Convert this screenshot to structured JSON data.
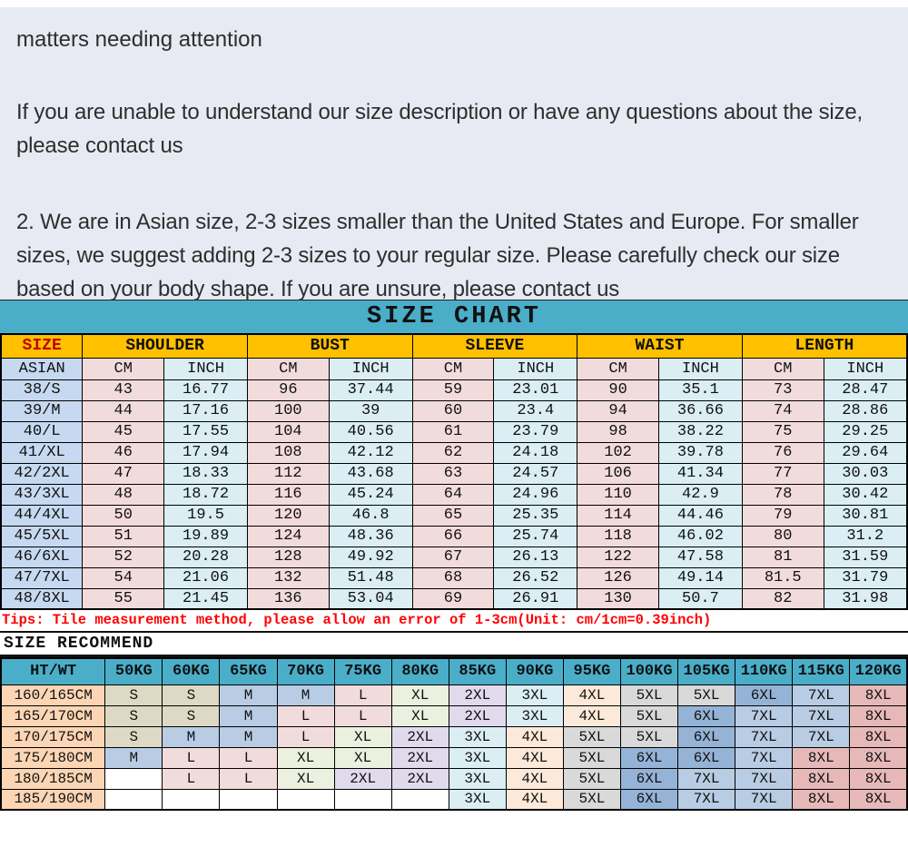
{
  "intro": {
    "title": "matters needing attention",
    "para1": "If you are unable to understand our size description or have any questions about the size, please contact us",
    "para2": "2. We are in Asian size, 2-3 sizes smaller than the United States and Europe. For smaller sizes, we suggest adding 2-3 sizes to your regular size. Please carefully check our size based on your body shape. If you are unsure, please contact us"
  },
  "size_chart": {
    "title": "SIZE CHART",
    "col_groups": [
      "SIZE",
      "SHOULDER",
      "BUST",
      "SLEEVE",
      "WAIST",
      "LENGTH"
    ],
    "sub_headers": [
      "ASIAN",
      "CM",
      "INCH",
      "CM",
      "INCH",
      "CM",
      "INCH",
      "CM",
      "INCH",
      "CM",
      "INCH"
    ],
    "rows": [
      [
        "38/S",
        "43",
        "16.77",
        "96",
        "37.44",
        "59",
        "23.01",
        "90",
        "35.1",
        "73",
        "28.47"
      ],
      [
        "39/M",
        "44",
        "17.16",
        "100",
        "39",
        "60",
        "23.4",
        "94",
        "36.66",
        "74",
        "28.86"
      ],
      [
        "40/L",
        "45",
        "17.55",
        "104",
        "40.56",
        "61",
        "23.79",
        "98",
        "38.22",
        "75",
        "29.25"
      ],
      [
        "41/XL",
        "46",
        "17.94",
        "108",
        "42.12",
        "62",
        "24.18",
        "102",
        "39.78",
        "76",
        "29.64"
      ],
      [
        "42/2XL",
        "47",
        "18.33",
        "112",
        "43.68",
        "63",
        "24.57",
        "106",
        "41.34",
        "77",
        "30.03"
      ],
      [
        "43/3XL",
        "48",
        "18.72",
        "116",
        "45.24",
        "64",
        "24.96",
        "110",
        "42.9",
        "78",
        "30.42"
      ],
      [
        "44/4XL",
        "50",
        "19.5",
        "120",
        "46.8",
        "65",
        "25.35",
        "114",
        "44.46",
        "79",
        "30.81"
      ],
      [
        "45/5XL",
        "51",
        "19.89",
        "124",
        "48.36",
        "66",
        "25.74",
        "118",
        "46.02",
        "80",
        "31.2"
      ],
      [
        "46/6XL",
        "52",
        "20.28",
        "128",
        "49.92",
        "67",
        "26.13",
        "122",
        "47.58",
        "81",
        "31.59"
      ],
      [
        "47/7XL",
        "54",
        "21.06",
        "132",
        "51.48",
        "68",
        "26.52",
        "126",
        "49.14",
        "81.5",
        "31.79"
      ],
      [
        "48/8XL",
        "55",
        "21.45",
        "136",
        "53.04",
        "69",
        "26.91",
        "130",
        "50.7",
        "82",
        "31.98"
      ]
    ]
  },
  "tips": "Tips: Tile measurement method, please allow an error of 1-3cm(Unit: cm/1cm=0.39inch)",
  "recommend": {
    "title": "SIZE RECOMMEND",
    "headers": [
      "HT/WT",
      "50KG",
      "60KG",
      "65KG",
      "70KG",
      "75KG",
      "80KG",
      "85KG",
      "90KG",
      "95KG",
      "100KG",
      "105KG",
      "110KG",
      "115KG",
      "120KG"
    ],
    "rows": [
      [
        "160/165CM",
        "S",
        "S",
        "M",
        "M",
        "L",
        "XL",
        "2XL",
        "3XL",
        "4XL",
        "5XL",
        "5XL",
        "6XL",
        "7XL",
        "8XL"
      ],
      [
        "165/170CM",
        "S",
        "S",
        "M",
        "L",
        "L",
        "XL",
        "2XL",
        "3XL",
        "4XL",
        "5XL",
        "6XL",
        "7XL",
        "7XL",
        "8XL"
      ],
      [
        "170/175CM",
        "S",
        "M",
        "M",
        "L",
        "XL",
        "2XL",
        "3XL",
        "4XL",
        "5XL",
        "5XL",
        "6XL",
        "7XL",
        "7XL",
        "8XL"
      ],
      [
        "175/180CM",
        "M",
        "L",
        "L",
        "XL",
        "XL",
        "2XL",
        "3XL",
        "4XL",
        "5XL",
        "6XL",
        "6XL",
        "7XL",
        "8XL",
        "8XL"
      ],
      [
        "180/185CM",
        "",
        "L",
        "L",
        "XL",
        "2XL",
        "2XL",
        "3XL",
        "4XL",
        "5XL",
        "6XL",
        "7XL",
        "7XL",
        "8XL",
        "8XL"
      ],
      [
        "185/190CM",
        "",
        "",
        "",
        "",
        "",
        "",
        "3XL",
        "4XL",
        "5XL",
        "6XL",
        "7XL",
        "7XL",
        "8XL",
        "8XL"
      ]
    ]
  },
  "colors": {
    "page_bg": "#e8eaf3",
    "teal_header": "#4aaec9",
    "yellow_header": "#ffc000",
    "size_label_red": "#c00000",
    "tips_red": "#fe0000",
    "asian_col_bg": "#c6d9f1",
    "cm_col_bg": "#f2dcdb",
    "inch_col_bg": "#daeef3",
    "height_col_bg": "#fcd5b4",
    "size_fill": {
      "S": "#ddd9c4",
      "M": "#b8cce4",
      "L": "#f2dcdb",
      "XL": "#ebf1de",
      "2XL": "#e1daec",
      "3XL": "#daeef3",
      "4XL": "#fde9d9",
      "5XL": "#d9d9d9",
      "6XL": "#95b3d7",
      "7XL": "#b8cce4",
      "8XL": "#e6b9b8",
      "": "#ffffff"
    }
  }
}
